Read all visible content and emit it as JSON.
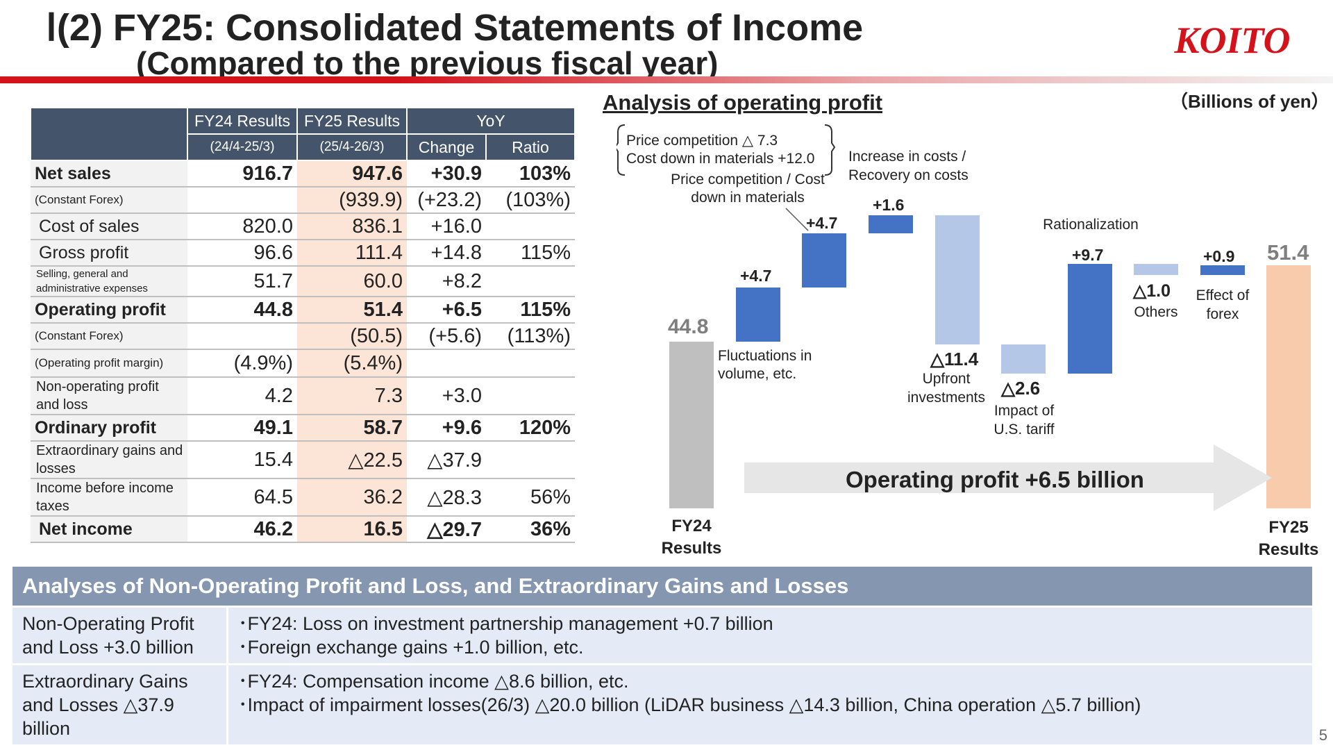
{
  "header": {
    "title_line1": "Ⅰ(2) FY25: Consolidated Statements of Income",
    "title_line2": "(Compared to the previous fiscal year)",
    "logo_text": "KOITO",
    "units": "（Billions of yen）",
    "accent_color": "#d4121b"
  },
  "table": {
    "col_fy24": "FY24 Results",
    "col_fy24_period": "(24/4-25/3)",
    "col_fy25": "FY25 Results",
    "col_fy25_period": "(25/4-26/3)",
    "col_yoy": "YoY",
    "col_change": "Change",
    "col_ratio": "Ratio",
    "rows": [
      {
        "label": "Net sales",
        "fy24": "916.7",
        "fy25": "947.6",
        "change": "+30.9",
        "ratio": "103%"
      },
      {
        "label": "(Constant Forex)",
        "fy24": "",
        "fy25": "(939.9)",
        "change": "(+23.2)",
        "ratio": "(103%)"
      },
      {
        "label": "Cost of sales",
        "fy24": "820.0",
        "fy25": "836.1",
        "change": "+16.0",
        "ratio": ""
      },
      {
        "label": "Gross profit",
        "fy24": "96.6",
        "fy25": "111.4",
        "change": "+14.8",
        "ratio": "115%"
      },
      {
        "label": "Selling, general and administrative expenses",
        "fy24": "51.7",
        "fy25": "60.0",
        "change": "+8.2",
        "ratio": ""
      },
      {
        "label": "Operating profit",
        "fy24": "44.8",
        "fy25": "51.4",
        "change": "+6.5",
        "ratio": "115%"
      },
      {
        "label": "(Constant Forex)",
        "fy24": "",
        "fy25": "(50.5)",
        "change": "(+5.6)",
        "ratio": "(113%)"
      },
      {
        "label": "(Operating profit margin)",
        "fy24": "(4.9%)",
        "fy25": "(5.4%)",
        "change": "",
        "ratio": ""
      },
      {
        "label": "Non-operating profit and loss",
        "fy24": "4.2",
        "fy25": "7.3",
        "change": "+3.0",
        "ratio": ""
      },
      {
        "label": "Ordinary profit",
        "fy24": "49.1",
        "fy25": "58.7",
        "change": "+9.6",
        "ratio": "120%"
      },
      {
        "label": "Extraordinary gains and losses",
        "fy24": "15.4",
        "fy25": "△22.5",
        "change": "△37.9",
        "ratio": ""
      },
      {
        "label": "Income before income taxes",
        "fy24": "64.5",
        "fy25": "36.2",
        "change": "△28.3",
        "ratio": "56%"
      },
      {
        "label": "Net income",
        "fy24": "46.2",
        "fy25": "16.5",
        "change": "△29.7",
        "ratio": "36%"
      }
    ]
  },
  "chart": {
    "title": "Analysis of operating profit",
    "bracket_note_line1": "Price competition △ 7.3",
    "bracket_note_line2": "Cost down in materials +12.0",
    "start_value": "44.8",
    "start_label": "FY24 Results",
    "end_value": "51.4",
    "end_label": "FY25 Results",
    "arrow_text": "Operating profit +6.5 billion",
    "steps": [
      {
        "value": "+4.7",
        "label": "Fluctuations in volume, etc."
      },
      {
        "value": "+4.7",
        "label": "Price competition / Cost down in materials"
      },
      {
        "value": "+1.6",
        "label": "Increase in costs / Recovery on costs"
      },
      {
        "value": "△11.4",
        "label": "Upfront investments"
      },
      {
        "value": "△2.6",
        "label": "Impact of U.S. tariff"
      },
      {
        "value": "+9.7",
        "label": "Rationalization"
      },
      {
        "value": "△1.0",
        "label": "Others"
      },
      {
        "value": "+0.9",
        "label": "Effect of forex"
      }
    ],
    "colors": {
      "start": "#bfbfbf",
      "increase": "#4472c4",
      "decrease": "#b4c7e7",
      "end": "#f8cbad"
    }
  },
  "analysis": {
    "heading": "Analyses of Non-Operating Profit and Loss, and Extraordinary Gains and Losses",
    "rows": [
      {
        "category": "Non-Operating Profit and Loss +3.0 billion",
        "line1": "･FY24: Loss on investment partnership management +0.7 billion",
        "line2": "･Foreign exchange gains +1.0 billion, etc."
      },
      {
        "category": "Extraordinary Gains and Losses △37.9 billion",
        "line1": "･FY24: Compensation income △8.6 billion, etc.",
        "line2": "･Impact of impairment losses(26/3) △20.0 billion (LiDAR business △14.3 billion, China operation △5.7 billion)"
      }
    ]
  },
  "page_number": "5"
}
